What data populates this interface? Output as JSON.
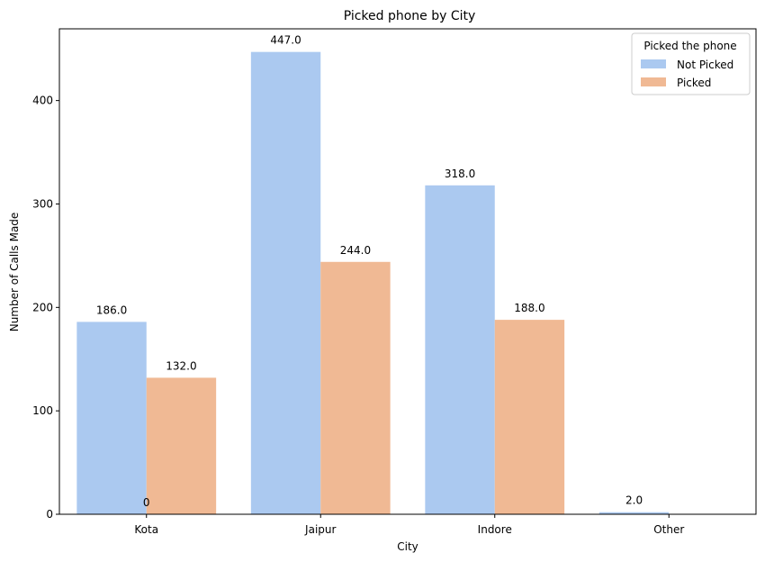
{
  "chart_data": {
    "type": "bar",
    "title": "Picked phone by City",
    "xlabel": "City",
    "ylabel": "Number of Calls Made",
    "categories": [
      "Kota",
      "Jaipur",
      "Indore",
      "Other"
    ],
    "series": [
      {
        "name": "Not Picked",
        "color": "#abc9f0",
        "values": [
          186,
          447,
          318,
          2
        ],
        "labels": [
          "186.0",
          "447.0",
          "318.0",
          "2.0"
        ]
      },
      {
        "name": "Picked",
        "color": "#f0b994",
        "values": [
          132,
          244,
          188,
          0
        ],
        "labels": [
          "132.0",
          "244.0",
          "188.0",
          ""
        ]
      }
    ],
    "extra_annotations": [
      {
        "text": "0",
        "category": "Kota",
        "y": 0
      }
    ],
    "yticks": [
      0,
      100,
      200,
      300,
      400
    ],
    "ytick_labels": [
      "0",
      "100",
      "200",
      "300",
      "400"
    ],
    "ylim": [
      0,
      469.35
    ],
    "grid": false,
    "legend": {
      "title": "Picked the phone",
      "placement": "top-right",
      "entries": [
        "Not Picked",
        "Picked"
      ]
    }
  }
}
